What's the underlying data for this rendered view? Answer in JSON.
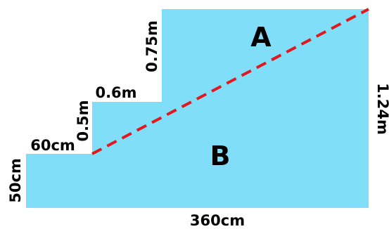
{
  "shape": {
    "fill_color": "#80DEF8",
    "diagonal_color": "#E0191E"
  },
  "regions": {
    "a_label": "A",
    "b_label": "B"
  },
  "dimensions": {
    "bottom_width": "360cm",
    "right_height": "1.24m",
    "left_height": "50cm",
    "first_step_width": "60cm",
    "second_step_height": "0.5m",
    "second_step_width": "0.6m",
    "top_step_height": "0.75m"
  }
}
